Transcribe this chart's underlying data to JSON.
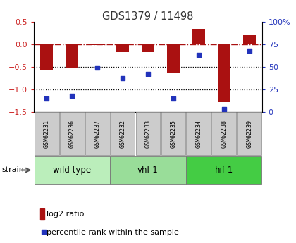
{
  "title": "GDS1379 / 11498",
  "samples": [
    "GSM62231",
    "GSM62236",
    "GSM62237",
    "GSM62232",
    "GSM62233",
    "GSM62235",
    "GSM62234",
    "GSM62238",
    "GSM62239"
  ],
  "log2_ratio": [
    -0.57,
    -0.52,
    -0.02,
    -0.18,
    -0.18,
    -0.65,
    0.35,
    -1.28,
    0.22
  ],
  "percentile_rank": [
    15,
    18,
    49,
    37,
    42,
    15,
    63,
    3,
    68
  ],
  "bar_color": "#aa1111",
  "dot_color": "#2233bb",
  "ylim_left": [
    -1.5,
    0.5
  ],
  "ylim_right": [
    0,
    100
  ],
  "yticks_left": [
    0.5,
    0.0,
    -0.5,
    -1.0,
    -1.5
  ],
  "yticks_right": [
    100,
    75,
    50,
    25,
    0
  ],
  "hline_y": 0.0,
  "dotted_lines": [
    -0.5,
    -1.0
  ],
  "groups": [
    {
      "label": "wild type",
      "indices": [
        0,
        1,
        2
      ],
      "color": "#bbeebb"
    },
    {
      "label": "vhl-1",
      "indices": [
        3,
        4,
        5
      ],
      "color": "#99dd99"
    },
    {
      "label": "hif-1",
      "indices": [
        6,
        7,
        8
      ],
      "color": "#44cc44"
    }
  ],
  "strain_label": "strain",
  "legend_bar_label": "log2 ratio",
  "legend_dot_label": "percentile rank within the sample",
  "bg_color": "#ffffff",
  "plot_bg_color": "#ffffff",
  "tick_label_color_left": "#cc2222",
  "tick_label_color_right": "#2233bb",
  "title_color": "#333333",
  "bar_width": 0.5
}
